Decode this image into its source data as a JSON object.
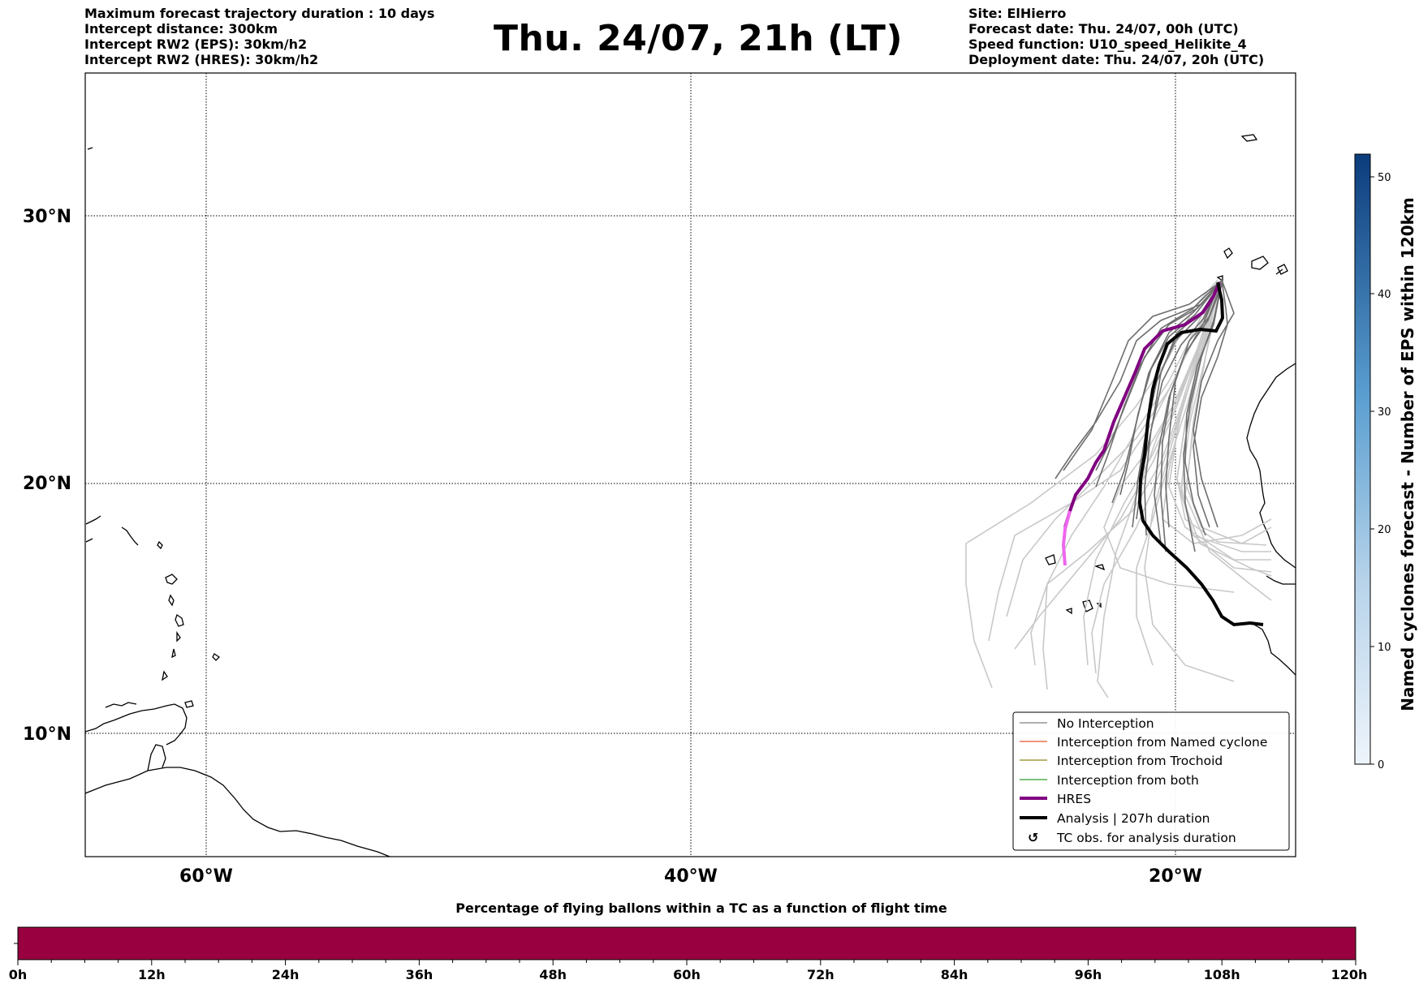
{
  "header": {
    "left_lines": [
      "Maximum forecast trajectory duration : 10 days",
      "Intercept distance: 300km",
      "Intercept RW2 (EPS):  30km/h2",
      "Intercept RW2 (HRES): 30km/h2"
    ],
    "title": "Thu. 24/07, 21h (LT)",
    "right_lines": [
      "Site: ElHierro",
      "Forecast date: Thu. 24/07, 00h (UTC)",
      "Speed function: U10_speed_Helikite_4",
      "Deployment date: Thu. 24/07, 20h (UTC)"
    ]
  },
  "map": {
    "lat_labels": [
      "30°N",
      "20°N",
      "10°N"
    ],
    "lon_labels": [
      "60°W",
      "40°W",
      "20°W"
    ],
    "gridlines": true
  },
  "legend": {
    "items": [
      {
        "label": "No Interception",
        "color": "#808080",
        "style": "thin"
      },
      {
        "label": "Interception from Named cyclone",
        "color": "#e8562a",
        "style": "thin"
      },
      {
        "label": "Interception from Trochoid",
        "color": "#8f8a1e",
        "style": "thin"
      },
      {
        "label": "Interception from both",
        "color": "#2e9e2e",
        "style": "thin"
      },
      {
        "label": "HRES",
        "color": "#800080",
        "style": "thick"
      },
      {
        "label": "Analysis | 207h duration",
        "color": "#000000",
        "style": "thick"
      },
      {
        "label": "TC obs. for analysis duration",
        "color": "#000000",
        "style": "symbol"
      }
    ],
    "symbol": "↺"
  },
  "colorbar": {
    "title": "Named cyclones forecast - Number of EPS within 120km",
    "ticks": [
      "0",
      "10",
      "20",
      "30",
      "40",
      "50"
    ],
    "low_color": "#e8f1fb",
    "high_color": "#0b3c7c"
  },
  "percent_bar": {
    "title": "Percentage of flying ballons within a TC as a function of flight time",
    "color": "#990040",
    "ticks": [
      "0h",
      "12h",
      "24h",
      "36h",
      "48h",
      "60h",
      "72h",
      "84h",
      "96h",
      "108h",
      "120h"
    ]
  },
  "colors": {
    "eps_no_interception_dark": "#6e6e6e",
    "eps_no_interception_light": "#c8c8c8",
    "hres": "#800080",
    "hres_tail": "#ee66ee",
    "analysis": "#000000"
  }
}
